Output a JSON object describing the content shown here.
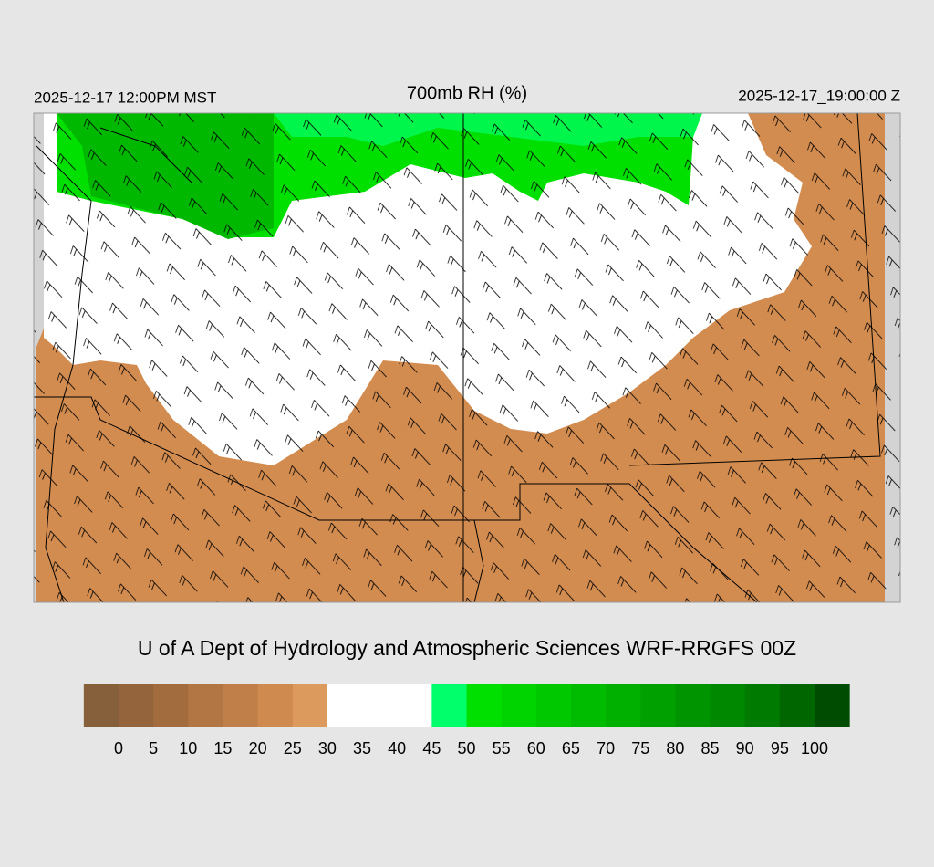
{
  "header": {
    "valid_local": "2025-12-17 12:00PM MST",
    "title": "700mb RH (%)",
    "valid_utc": "2025-12-17_19:00:00 Z"
  },
  "credit": "U of A Dept of Hydrology and Atmospheric Sciences WRF-RRGFS 00Z",
  "colorbar": {
    "ticks": [
      0,
      5,
      10,
      15,
      20,
      25,
      30,
      35,
      40,
      45,
      50,
      55,
      60,
      65,
      70,
      75,
      80,
      85,
      90,
      95,
      100
    ],
    "colors": [
      "#86603a",
      "#94653c",
      "#a36c3f",
      "#b17643",
      "#c07f48",
      "#cf8b4f",
      "#dc9a5c",
      "#ffffff",
      "#ffffff",
      "#ffffff",
      "#00ff6a",
      "#00e000",
      "#00d400",
      "#00c800",
      "#00bc00",
      "#00b000",
      "#00a000",
      "#009400",
      "#008800",
      "#007a00",
      "#006600",
      "#004c00"
    ]
  }
}
